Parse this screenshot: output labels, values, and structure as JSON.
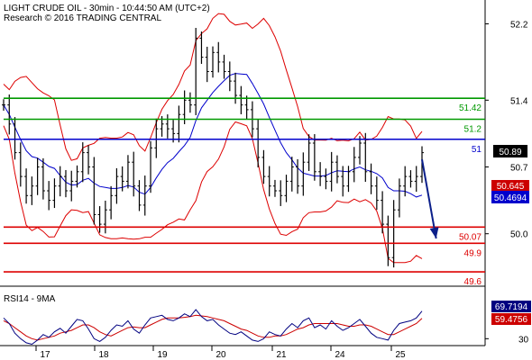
{
  "chart_data": [
    {
      "type": "line",
      "title": "LIGHT CRUDE OIL - 30min - 10:44:50 AM (UTC+2)",
      "subtitle": "Research © 2016 TRADING CENTRAL",
      "xlabel": "",
      "ylabel": "",
      "x_ticks": [
        "17",
        "18",
        "19",
        "20",
        "21",
        "24",
        "25"
      ],
      "y_ticks": [
        52.2,
        51.4,
        50.7,
        50.0
      ],
      "ylim": [
        49.45,
        52.45
      ],
      "grid": false,
      "price_badge": "50.89",
      "ma_badges": [
        "50.645",
        "50.4694"
      ],
      "levels": [
        {
          "label": "51.42",
          "value": 51.42,
          "color": "#009900"
        },
        {
          "label": "51.2",
          "value": 51.2,
          "color": "#009900"
        },
        {
          "label": "51",
          "value": 50.99,
          "color": "#0000cc"
        },
        {
          "label": "50.07",
          "value": 50.07,
          "color": "#dd0000"
        },
        {
          "label": "49.9",
          "value": 49.9,
          "color": "#dd0000"
        },
        {
          "label": "49.6",
          "value": 49.6,
          "color": "#dd0000"
        }
      ],
      "series": [
        {
          "values": [
            51.35,
            51.15,
            50.85,
            50.6,
            50.4,
            50.5,
            50.7,
            50.45,
            50.35,
            50.5,
            50.6,
            50.45,
            50.55,
            50.65,
            50.85,
            50.7,
            50.2,
            50.1,
            50.25,
            50.4,
            50.6,
            50.55,
            50.75,
            50.5,
            50.3,
            50.5,
            50.9,
            51.1,
            51.15,
            51.1,
            51.05,
            51.25,
            51.4,
            51.35,
            52.05,
            51.85,
            51.7,
            51.9,
            51.8,
            51.7,
            51.6,
            51.45,
            51.35,
            51.3,
            51.1,
            50.8,
            50.6,
            50.5,
            50.45,
            50.4,
            50.55,
            50.7,
            50.5,
            50.75,
            50.95,
            50.65,
            50.6,
            50.55,
            50.75,
            50.6,
            50.5,
            50.65,
            50.8,
            50.95,
            50.65,
            50.5,
            50.35,
            50.1,
            49.75,
            50.25,
            50.5,
            50.6,
            50.55,
            50.6,
            50.85
          ]
        }
      ],
      "arrow": {
        "from": [
          74,
          50.78
        ],
        "to": [
          76.5,
          49.95
        ],
        "color": "#0b1f8a"
      },
      "colors": {
        "price": "#000000",
        "bands": "#dd0000",
        "ma": "#0000cc",
        "accent_badge": "#cc0000",
        "blue_badge": "#0000cc",
        "price_badge": "#000000"
      }
    },
    {
      "type": "line",
      "title": "RSI14 - 9MA",
      "ylim": [
        20,
        80
      ],
      "y_ticks": [
        30
      ],
      "rsi_badges": [
        "69.7194",
        "59.4756"
      ],
      "series": [
        {
          "values": [
            60,
            52,
            38,
            30,
            24,
            22,
            28,
            36,
            32,
            40,
            45,
            38,
            48,
            58,
            56,
            44,
            30,
            26,
            32,
            42,
            50,
            48,
            56,
            44,
            38,
            50,
            60,
            62,
            64,
            58,
            56,
            60,
            66,
            62,
            72,
            62,
            56,
            58,
            50,
            44,
            38,
            36,
            40,
            34,
            28,
            26,
            30,
            40,
            36,
            34,
            44,
            52,
            46,
            56,
            60,
            46,
            50,
            44,
            56,
            48,
            42,
            46,
            52,
            58,
            48,
            38,
            32,
            30,
            28,
            42,
            52,
            54,
            56,
            60,
            70
          ]
        },
        {
          "values": [
            56,
            52,
            46,
            40,
            34,
            30,
            28,
            30,
            32,
            34,
            38,
            40,
            42,
            46,
            50,
            50,
            46,
            40,
            36,
            34,
            38,
            42,
            46,
            47,
            46,
            46,
            50,
            54,
            58,
            60,
            60,
            60,
            61,
            62,
            64,
            63,
            62,
            60,
            58,
            56,
            52,
            48,
            44,
            42,
            38,
            34,
            32,
            32,
            34,
            34,
            36,
            40,
            44,
            46,
            50,
            52,
            52,
            52,
            52,
            52,
            50,
            48,
            48,
            50,
            50,
            48,
            44,
            40,
            36,
            36,
            40,
            44,
            48,
            52,
            59.5
          ]
        }
      ],
      "colors": {
        "rsi": "#000080",
        "ma": "#cc0000",
        "rsi_badge": "#000080",
        "ma_badge": "#cc0000"
      }
    }
  ]
}
